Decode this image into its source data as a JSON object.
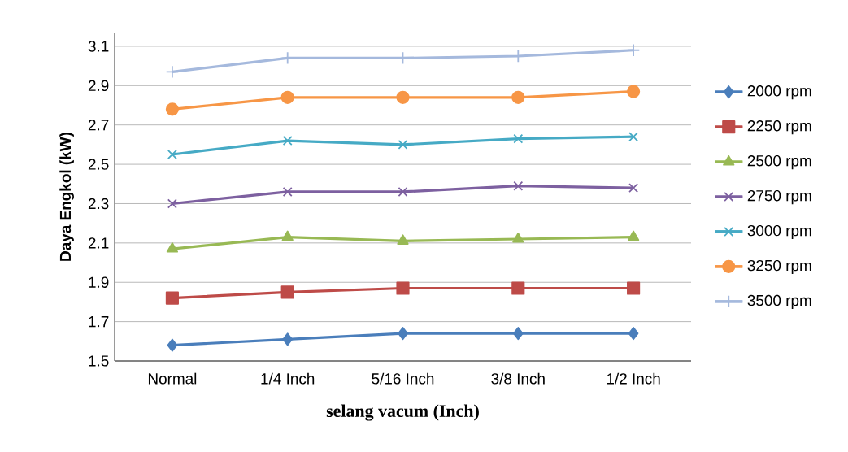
{
  "chart_data": {
    "type": "line",
    "xlabel": "selang vacum (Inch)",
    "ylabel": "Daya Engkol (kW)",
    "categories": [
      "Normal",
      "1/4 Inch",
      "5/16 Inch",
      "3/8 Inch",
      "1/2 Inch"
    ],
    "ylim": [
      1.5,
      3.17
    ],
    "yticks": [
      1.5,
      1.7,
      1.9,
      2.1,
      2.3,
      2.5,
      2.7,
      2.9,
      3.1
    ],
    "grid": "y",
    "legend": "right",
    "line_style": "solid",
    "series": [
      {
        "name": "2000 rpm",
        "color": "#4a7ebb",
        "marker": "diamond",
        "values": [
          1.58,
          1.61,
          1.64,
          1.64,
          1.64
        ]
      },
      {
        "name": "2250 rpm",
        "color": "#be4b48",
        "marker": "square",
        "values": [
          1.82,
          1.85,
          1.87,
          1.87,
          1.87
        ]
      },
      {
        "name": "2500 rpm",
        "color": "#98b954",
        "marker": "triangle",
        "values": [
          2.07,
          2.13,
          2.11,
          2.12,
          2.13
        ]
      },
      {
        "name": "2750 rpm",
        "color": "#7d60a0",
        "marker": "cross",
        "values": [
          2.3,
          2.36,
          2.36,
          2.39,
          2.38
        ]
      },
      {
        "name": "3000 rpm",
        "color": "#46aac5",
        "marker": "cross",
        "values": [
          2.55,
          2.62,
          2.6,
          2.63,
          2.64
        ]
      },
      {
        "name": "3250 rpm",
        "color": "#f79646",
        "marker": "circle",
        "values": [
          2.78,
          2.84,
          2.84,
          2.84,
          2.87
        ]
      },
      {
        "name": "3500 rpm",
        "color": "#a5b9dd",
        "marker": "plus",
        "values": [
          2.97,
          3.04,
          3.04,
          3.05,
          3.08
        ]
      }
    ]
  }
}
